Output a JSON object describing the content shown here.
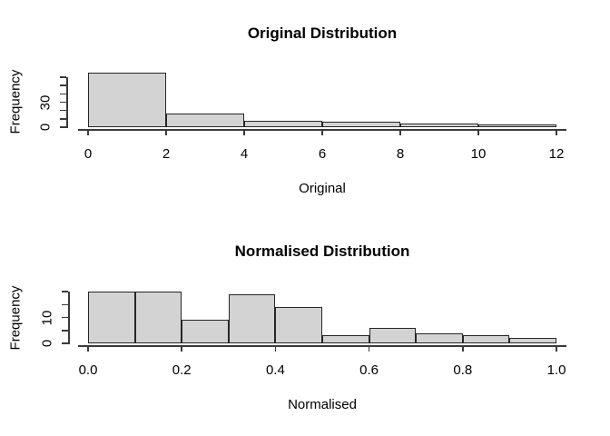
{
  "figure": {
    "background": "#ffffff",
    "bar_fill": "#d3d3d3",
    "bar_border": "#262626",
    "axis_color": "#3a3a3a",
    "text_color": "#000000"
  },
  "chart_data": [
    {
      "type": "bar",
      "subtype": "histogram",
      "title": "Original Distribution",
      "xlabel": "Original",
      "ylabel": "Frequency",
      "xlim": [
        0,
        12
      ],
      "ylim": [
        0,
        65
      ],
      "grid": false,
      "legend": "none",
      "breaks": [
        0,
        2,
        4,
        6,
        8,
        10,
        12
      ],
      "counts": [
        65,
        16,
        8,
        7,
        4,
        3
      ],
      "x_ticks": [
        {
          "value": 0,
          "label": "0"
        },
        {
          "value": 2,
          "label": "2"
        },
        {
          "value": 4,
          "label": "4"
        },
        {
          "value": 6,
          "label": "6"
        },
        {
          "value": 8,
          "label": "8"
        },
        {
          "value": 10,
          "label": "10"
        },
        {
          "value": 12,
          "label": "12"
        }
      ],
      "y_ticks": [
        {
          "value": 0,
          "label": "0"
        },
        {
          "value": 10,
          "label": ""
        },
        {
          "value": 20,
          "label": ""
        },
        {
          "value": 30,
          "label": "30"
        },
        {
          "value": 40,
          "label": ""
        },
        {
          "value": 50,
          "label": ""
        },
        {
          "value": 60,
          "label": ""
        }
      ]
    },
    {
      "type": "bar",
      "subtype": "histogram",
      "title": "Normalised Distribution",
      "xlabel": "Normalised",
      "ylabel": "Frequency",
      "xlim": [
        0,
        1
      ],
      "ylim": [
        0,
        20
      ],
      "grid": false,
      "legend": "none",
      "breaks": [
        0,
        0.1,
        0.2,
        0.3,
        0.4,
        0.5,
        0.6,
        0.7,
        0.8,
        0.9,
        1.0
      ],
      "counts": [
        20,
        20,
        9,
        19,
        14,
        3,
        6,
        4,
        3,
        2
      ],
      "x_ticks": [
        {
          "value": 0,
          "label": "0.0"
        },
        {
          "value": 0.2,
          "label": "0.2"
        },
        {
          "value": 0.4,
          "label": "0.4"
        },
        {
          "value": 0.6,
          "label": "0.6"
        },
        {
          "value": 0.8,
          "label": "0.8"
        },
        {
          "value": 1.0,
          "label": "1.0"
        }
      ],
      "y_ticks": [
        {
          "value": 0,
          "label": "0"
        },
        {
          "value": 5,
          "label": ""
        },
        {
          "value": 10,
          "label": "10"
        },
        {
          "value": 15,
          "label": ""
        },
        {
          "value": 20,
          "label": ""
        }
      ]
    }
  ]
}
